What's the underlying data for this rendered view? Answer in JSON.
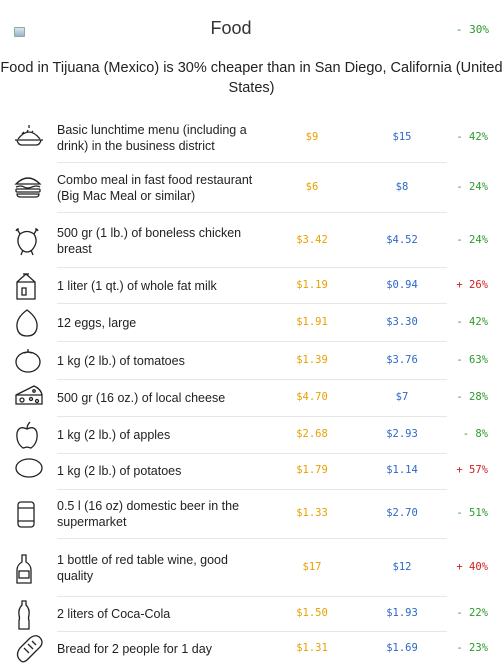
{
  "header": {
    "title": "Food",
    "diff": "- 30%",
    "collapse_icon": "collapse-icon"
  },
  "summary": "Food in Tijuana (Mexico) is 30% cheaper than in San Diego, California (United States)",
  "colors": {
    "city1_price": "#e8a000",
    "city2_price": "#2b68c8",
    "cheaper": "#2a9a2a",
    "pricier": "#d02020"
  },
  "items": [
    {
      "icon": "lunch-tray-icon",
      "label": "Basic lunchtime menu (including a drink) in the business district",
      "price1": "$9",
      "price2": "$15",
      "diff": "- 42%",
      "sign": "neg"
    },
    {
      "icon": "burger-icon",
      "label": "Combo meal in fast food restaurant (Big Mac Meal or similar)",
      "price1": "$6",
      "price2": "$8",
      "diff": "- 24%",
      "sign": "neg"
    },
    {
      "icon": "chicken-icon",
      "label": "500 gr (1 lb.) of boneless chicken breast",
      "price1": "$3.42",
      "price2": "$4.52",
      "diff": "- 24%",
      "sign": "neg"
    },
    {
      "icon": "milk-carton-icon",
      "label": "1 liter (1 qt.) of whole fat milk",
      "price1": "$1.19",
      "price2": "$0.94",
      "diff": "+ 26%",
      "sign": "pos"
    },
    {
      "icon": "egg-icon",
      "label": "12 eggs, large",
      "price1": "$1.91",
      "price2": "$3.30",
      "diff": "- 42%",
      "sign": "neg"
    },
    {
      "icon": "tomato-icon",
      "label": "1 kg (2 lb.) of tomatoes",
      "price1": "$1.39",
      "price2": "$3.76",
      "diff": "- 63%",
      "sign": "neg"
    },
    {
      "icon": "cheese-icon",
      "label": "500 gr (16 oz.) of local cheese",
      "price1": "$4.70",
      "price2": "$7",
      "diff": "- 28%",
      "sign": "neg"
    },
    {
      "icon": "apple-icon",
      "label": "1 kg (2 lb.) of apples",
      "price1": "$2.68",
      "price2": "$2.93",
      "diff": "- 8%",
      "sign": "neg"
    },
    {
      "icon": "potato-icon",
      "label": "1 kg (2 lb.) of potatoes",
      "price1": "$1.79",
      "price2": "$1.14",
      "diff": "+ 57%",
      "sign": "pos"
    },
    {
      "icon": "beer-can-icon",
      "label": "0.5 l (16 oz) domestic beer in the supermarket",
      "price1": "$1.33",
      "price2": "$2.70",
      "diff": "- 51%",
      "sign": "neg"
    },
    {
      "icon": "wine-bottle-icon",
      "label": "1 bottle of red table wine, good quality",
      "price1": "$17",
      "price2": "$12",
      "diff": "+ 40%",
      "sign": "pos"
    },
    {
      "icon": "soda-bottle-icon",
      "label": "2 liters of Coca-Cola",
      "price1": "$1.50",
      "price2": "$1.93",
      "diff": "- 22%",
      "sign": "neg"
    },
    {
      "icon": "bread-icon",
      "label": "Bread for 2 people for 1 day",
      "price1": "$1.31",
      "price2": "$1.69",
      "diff": "- 23%",
      "sign": "neg"
    }
  ]
}
